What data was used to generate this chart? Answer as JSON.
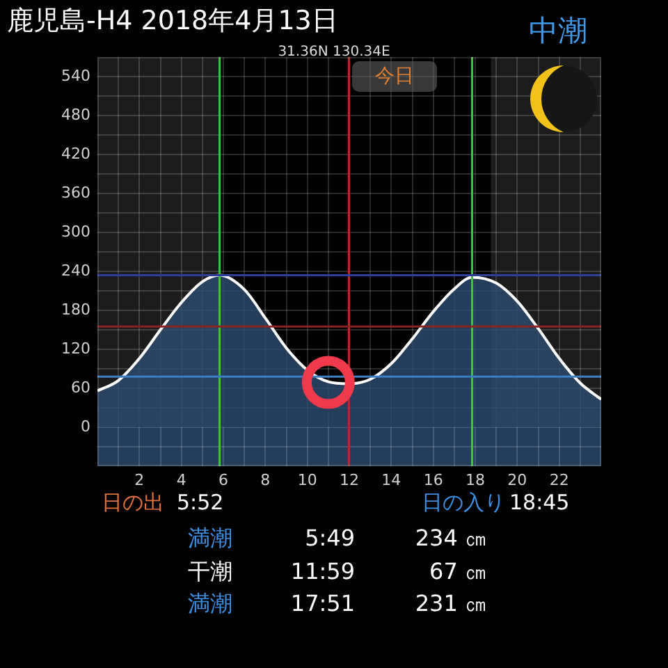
{
  "chart_data": {
    "type": "area",
    "title": "鹿児島-H4 2018年4月13日",
    "subtitle": "31.36N 130.34E",
    "annotations": [
      "中潮",
      "今日",
      "日の出",
      "5:52",
      "日の入り",
      "18:45",
      "満潮",
      "5:49",
      "234 ㎝",
      "干潮",
      "11:59",
      "67 ㎝",
      "満潮",
      "17:51",
      "231 ㎝"
    ],
    "x": [
      0,
      1,
      2,
      3,
      4,
      5,
      5.82,
      7,
      8,
      9,
      10,
      11,
      11.98,
      13,
      14,
      15,
      16,
      17,
      17.85,
      19,
      20,
      21,
      22,
      23,
      24
    ],
    "series": [
      {
        "color": "#2c4a6e",
        "values": [
          56,
          72,
          106,
          150,
          192,
          224,
          234,
          212,
          168,
          122,
          88,
          70,
          67,
          74,
          98,
          136,
          178,
          213,
          231,
          222,
          194,
          152,
          106,
          68,
          43
        ]
      },
      {
        "type": "scatter",
        "x": [
          11.0
        ],
        "values": [
          69
        ],
        "color": "#f03a4c",
        "marker": "circle"
      }
    ],
    "xlim": [
      0,
      24
    ],
    "xticks": [
      {
        "value": 1,
        "label": null
      },
      2,
      {
        "value": 3,
        "label": null
      },
      4,
      {
        "value": 5,
        "label": null
      },
      6,
      {
        "value": 7,
        "label": null
      },
      8,
      {
        "value": 9,
        "label": null
      },
      10,
      {
        "value": 11,
        "label": null
      },
      12,
      {
        "value": 13,
        "label": null
      },
      14,
      {
        "value": 15,
        "label": null
      },
      16,
      {
        "value": 17,
        "label": null
      },
      18,
      {
        "value": 19,
        "label": null
      },
      20,
      {
        "value": 21,
        "label": null
      },
      22,
      {
        "value": 23,
        "label": null
      }
    ],
    "ylim": [
      -60,
      570
    ],
    "yticks": [
      {
        "value": -30,
        "label": null
      },
      0,
      {
        "value": 30,
        "label": null
      },
      60,
      {
        "value": 90,
        "label": null
      },
      120,
      {
        "value": 150,
        "label": null
      },
      180,
      {
        "value": 210,
        "label": null
      },
      240,
      {
        "value": 270,
        "label": null
      },
      300,
      {
        "value": 330,
        "label": null
      },
      360,
      {
        "value": 390,
        "label": null
      },
      420,
      {
        "value": 450,
        "label": null
      },
      480,
      {
        "value": 510,
        "label": null
      },
      540
    ],
    "grid": true,
    "ref_lines": [
      {
        "axis": "x",
        "value": 5.82,
        "color": "#3ec43e"
      },
      {
        "axis": "x",
        "value": 11.98,
        "color": "#b8282c"
      },
      {
        "axis": "x",
        "value": 17.85,
        "color": "#3ec43e"
      },
      {
        "axis": "y",
        "value": 234,
        "color": "#2c3f9a"
      },
      {
        "axis": "y",
        "value": 155,
        "color": "#8c2222"
      },
      {
        "axis": "y",
        "value": 78,
        "color": "#3b7fc4"
      }
    ],
    "bands": [
      {
        "axis": "x",
        "from": 0,
        "to": 5.87,
        "color": "#1c1c1c"
      },
      {
        "axis": "x",
        "from": 18.75,
        "to": 24,
        "color": "#1c1c1c"
      },
      {
        "axis": "y",
        "from": -60,
        "to": 0,
        "color": "#243d5a"
      }
    ]
  }
}
